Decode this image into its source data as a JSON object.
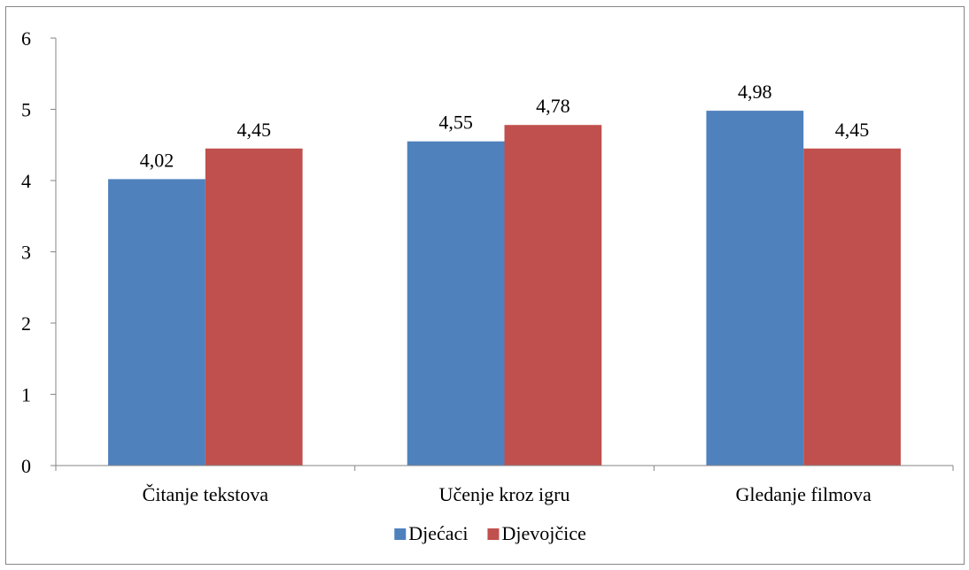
{
  "chart_data": {
    "type": "bar",
    "categories": [
      "Čitanje tekstova",
      "Učenje kroz igru",
      "Gledanje filmova"
    ],
    "series": [
      {
        "name": "Djećaci",
        "values": [
          4.02,
          4.55,
          4.98
        ],
        "labels": [
          "4,02",
          "4,55",
          "4,98"
        ],
        "color": "#4F81BD"
      },
      {
        "name": "Djevojčice",
        "values": [
          4.45,
          4.78,
          4.45
        ],
        "labels": [
          "4,45",
          "4,78",
          "4,45"
        ],
        "color": "#C0504D"
      }
    ],
    "y_ticks": [
      "0",
      "1",
      "2",
      "3",
      "4",
      "5",
      "6"
    ],
    "ylim": [
      0,
      6
    ],
    "grid": false,
    "legend_position": "bottom",
    "title": "",
    "xlabel": "",
    "ylabel": ""
  }
}
